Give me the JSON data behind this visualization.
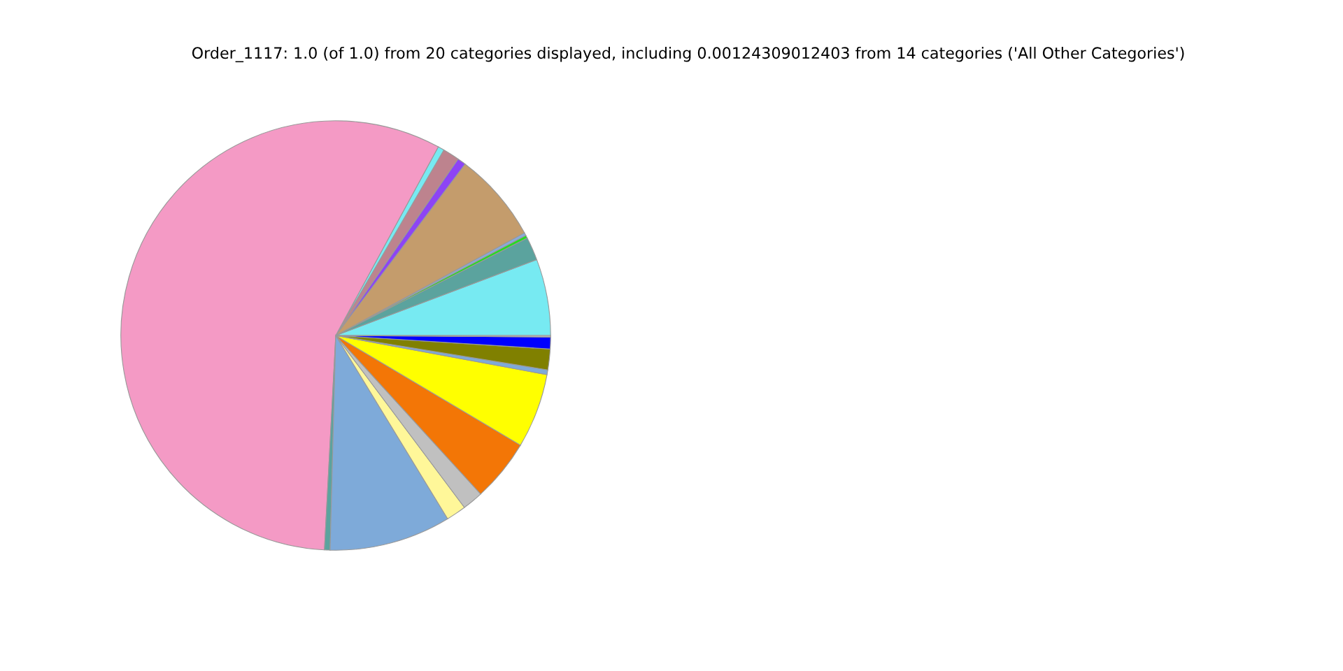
{
  "chart_data": {
    "type": "pie",
    "title": "Order_1117: 1.0 (of 1.0) from 20 categories displayed, including 0.00124309012403 from 14 categories ('All Other Categories')",
    "categories": [
      null,
      null,
      null,
      null,
      null,
      null,
      null,
      null,
      null,
      null,
      null,
      null,
      null,
      null,
      null,
      null,
      null,
      null,
      null
    ],
    "values": [
      5.75,
      1.75,
      0.22,
      0.22,
      6.78,
      0.64,
      1.25,
      0.47,
      57.08,
      0.42,
      9.14,
      1.5,
      1.56,
      4.69,
      5.61,
      0.36,
      1.56,
      0.89,
      0.11
    ],
    "colors": [
      "#77eaf2",
      "#5ba39e",
      "#22dd22",
      "#88aadd",
      "#c49c6c",
      "#8d44f5",
      "#bd838e",
      "#77eaf2",
      "#f49ac5",
      "#5ba39e",
      "#7eaad9",
      "#fff799",
      "#c0c0c0",
      "#f37606",
      "#ffff00",
      "#7eaad9",
      "#808000",
      "#0000ff",
      "#c0c0c0"
    ]
  }
}
